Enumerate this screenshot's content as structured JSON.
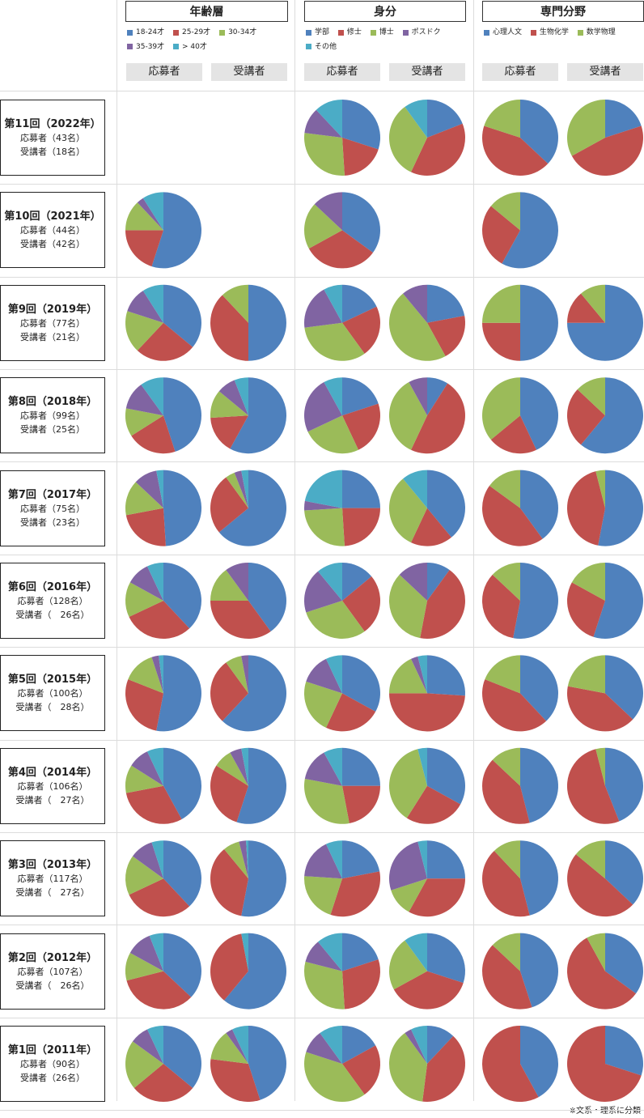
{
  "chart_data": {
    "type": "pie",
    "groups": [
      {
        "title": "年齢層",
        "legend": [
          "18-24才",
          "25-29才",
          "30-34才",
          "35-39才",
          "> 40才"
        ]
      },
      {
        "title": "身分",
        "legend": [
          "学部",
          "修士",
          "博士",
          "ポスドク",
          "その他"
        ]
      },
      {
        "title": "専門分野",
        "legend": [
          "心理人文",
          "生物化学",
          "数学物理"
        ]
      }
    ],
    "columns": [
      "応募者",
      "受講者"
    ],
    "colors": [
      "#4f81bd",
      "#c0504d",
      "#9bbb59",
      "#8064a2",
      "#4bacc6"
    ],
    "rows": [
      {
        "title": "第11回（2022年）",
        "applicants": "応募者（43名）",
        "participants": "受講者（18名）",
        "pies": [
          null,
          null,
          [
            30,
            19,
            28,
            11,
            12
          ],
          [
            19,
            38,
            33,
            0,
            10
          ],
          [
            37,
            43,
            20
          ],
          [
            20,
            47,
            33
          ]
        ]
      },
      {
        "title": "第10回（2021年）",
        "applicants": "応募者（44名）",
        "participants": "受講者（42名）",
        "pies": [
          [
            55,
            20,
            13,
            3,
            9
          ],
          null,
          [
            35,
            32,
            20,
            13,
            0
          ],
          null,
          [
            58,
            28,
            14
          ],
          null
        ]
      },
      {
        "title": "第9回（2019年）",
        "applicants": "応募者（77名）",
        "participants": "受講者（21名）",
        "pies": [
          [
            36,
            26,
            18,
            11,
            9
          ],
          [
            50,
            38,
            12,
            0,
            0
          ],
          [
            18,
            22,
            33,
            19,
            8
          ],
          [
            22,
            20,
            47,
            11,
            0
          ],
          [
            50,
            25,
            25
          ],
          [
            75,
            14,
            11
          ]
        ]
      },
      {
        "title": "第8回（2018年）",
        "applicants": "応募者（99名）",
        "participants": "受講者（25名）",
        "pies": [
          [
            45,
            21,
            12,
            12,
            10
          ],
          [
            58,
            16,
            12,
            8,
            6
          ],
          [
            20,
            23,
            25,
            24,
            8
          ],
          [
            9,
            48,
            35,
            8,
            0
          ],
          [
            43,
            21,
            36
          ],
          [
            61,
            26,
            13
          ]
        ]
      },
      {
        "title": "第7回（2017年）",
        "applicants": "応募者（75名）",
        "participants": "受講者（23名）",
        "pies": [
          [
            49,
            23,
            15,
            10,
            3
          ],
          [
            64,
            26,
            4,
            3,
            3
          ],
          [
            25,
            24,
            25,
            4,
            22
          ],
          [
            39,
            18,
            32,
            0,
            11
          ],
          [
            40,
            45,
            15
          ],
          [
            53,
            43,
            4
          ]
        ]
      },
      {
        "title": "第6回（2016年）",
        "applicants": "応募者（128名）",
        "participants": "受講者（　26名）",
        "pies": [
          [
            38,
            30,
            15,
            10,
            7
          ],
          [
            40,
            35,
            15,
            10,
            0
          ],
          [
            14,
            26,
            30,
            19,
            11
          ],
          [
            10,
            43,
            34,
            13,
            0
          ],
          [
            53,
            34,
            13
          ],
          [
            55,
            28,
            17
          ]
        ]
      },
      {
        "title": "第5回（2015年）",
        "applicants": "応募者（100名）",
        "participants": "受講者（　28名）",
        "pies": [
          [
            53,
            28,
            14,
            3,
            2
          ],
          [
            62,
            28,
            7,
            3,
            0
          ],
          [
            33,
            24,
            23,
            13,
            7
          ],
          [
            26,
            49,
            18,
            3,
            4
          ],
          [
            38,
            43,
            19
          ],
          [
            37,
            41,
            22
          ]
        ]
      },
      {
        "title": "第4回（2014年）",
        "applicants": "応募者（106名）",
        "participants": "受講者（　27名）",
        "pies": [
          [
            42,
            30,
            12,
            9,
            7
          ],
          [
            55,
            29,
            8,
            5,
            3
          ],
          [
            25,
            22,
            31,
            14,
            8
          ],
          [
            33,
            26,
            37,
            0,
            4
          ],
          [
            46,
            41,
            13
          ],
          [
            44,
            52,
            4
          ]
        ]
      },
      {
        "title": "第3回（2013年）",
        "applicants": "応募者（117名）",
        "participants": "受講者（　27名）",
        "pies": [
          [
            38,
            30,
            17,
            10,
            5
          ],
          [
            53,
            36,
            7,
            3,
            1
          ],
          [
            22,
            33,
            21,
            17,
            7
          ],
          [
            25,
            33,
            12,
            26,
            4
          ],
          [
            46,
            42,
            12
          ],
          [
            37,
            49,
            14
          ]
        ]
      },
      {
        "title": "第2回（2012年）",
        "applicants": "応募者（107名）",
        "participants": "受講者（　26名）",
        "pies": [
          [
            37,
            34,
            12,
            11,
            6
          ],
          [
            61,
            36,
            0,
            0,
            3
          ],
          [
            20,
            29,
            30,
            10,
            11
          ],
          [
            30,
            37,
            23,
            0,
            10
          ],
          [
            45,
            42,
            13
          ],
          [
            35,
            57,
            8
          ]
        ]
      },
      {
        "title": "第1回（2011年）",
        "applicants": "応募者（90名）",
        "participants": "受講者（26名）",
        "pies": [
          [
            36,
            28,
            21,
            8,
            7
          ],
          [
            45,
            32,
            13,
            3,
            7
          ],
          [
            17,
            23,
            40,
            10,
            10
          ],
          [
            12,
            40,
            38,
            3,
            7
          ],
          [
            42,
            58,
            0
          ],
          [
            30,
            70,
            0
          ]
        ]
      }
    ],
    "footnote": "※文系・理系に分類"
  }
}
